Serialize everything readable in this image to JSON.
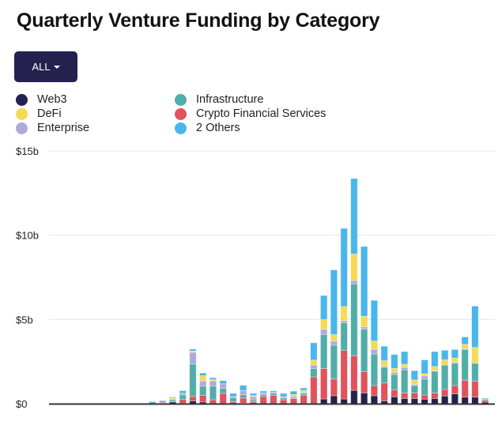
{
  "title": "Quarterly Venture Funding by Category",
  "filter_button": {
    "label": "ALL",
    "icon": "caret-down-icon"
  },
  "chart_data": {
    "type": "bar",
    "stacked": true,
    "title": "Quarterly Venture Funding by Category",
    "xlabel": "",
    "ylabel": "",
    "ylim": [
      0,
      15
    ],
    "y_unit": "billion USD",
    "y_ticks": [
      "$0",
      "$5b",
      "$10b",
      "$15b"
    ],
    "y_tick_values": [
      0,
      5,
      10,
      15
    ],
    "grid": true,
    "legend_position": "top-left",
    "series": [
      {
        "name": "Web3",
        "color": "#24214f",
        "values": [
          0,
          0,
          0,
          0,
          0,
          0,
          0,
          0,
          0,
          0,
          0.1,
          0.02,
          0.16,
          0.1,
          0,
          0,
          0,
          0.03,
          0,
          0,
          0,
          0,
          0,
          0,
          0,
          0.28,
          0.47,
          0.28,
          0.79,
          0.64,
          0.47,
          0.16,
          0.41,
          0.31,
          0.31,
          0.27,
          0.31,
          0.46,
          0.58,
          0.39,
          0.39,
          0.09
        ]
      },
      {
        "name": "Crypto Financial Services",
        "color": "#e0525c",
        "values": [
          0,
          0,
          0,
          0,
          0,
          0,
          0,
          0,
          0,
          0.03,
          0.05,
          0.23,
          0.27,
          0.39,
          0.23,
          0.61,
          0.11,
          0.3,
          0.11,
          0.42,
          0.49,
          0.23,
          0.3,
          0.49,
          1.59,
          1.81,
          0.99,
          2.88,
          2.06,
          1.26,
          0.61,
          1.07,
          0.42,
          0.33,
          0.33,
          0.25,
          0.33,
          0.38,
          0.5,
          1.0,
          0.94,
          0.11
        ]
      },
      {
        "name": "Infrastructure",
        "color": "#52ada8",
        "values": [
          0,
          0,
          0,
          0,
          0,
          0,
          0,
          0,
          0,
          0,
          0.1,
          0.27,
          1.92,
          0.55,
          0.81,
          0.3,
          0.25,
          0.2,
          0.12,
          0.11,
          0.13,
          0.11,
          0,
          0.12,
          0.5,
          2.01,
          2.01,
          1.64,
          4.26,
          2.52,
          1.87,
          0.93,
          0.9,
          1.37,
          0.44,
          0.94,
          1.29,
          1.45,
          1.32,
          1.82,
          1.07,
          0.06
        ]
      },
      {
        "name": "Enterprise",
        "color": "#aeaadb",
        "values": [
          0,
          0,
          0,
          0,
          0,
          0,
          0,
          0,
          0,
          0.16,
          0.03,
          0.1,
          0.7,
          0.31,
          0.31,
          0.27,
          0.06,
          0.25,
          0.19,
          0.12,
          0.06,
          0.08,
          0.12,
          0.06,
          0.2,
          0.31,
          0.24,
          0.13,
          0.2,
          0.14,
          0.27,
          0.06,
          0.13,
          0.14,
          0.06,
          0.19,
          0.03,
          0,
          0.06,
          0.06,
          0,
          0
        ]
      },
      {
        "name": "DeFi",
        "color": "#f6d955",
        "values": [
          0,
          0,
          0,
          0,
          0,
          0,
          0,
          0,
          0,
          0,
          0.07,
          0,
          0.08,
          0.31,
          0.08,
          0,
          0,
          0,
          0.06,
          0,
          0,
          0,
          0.12,
          0.12,
          0.3,
          0.58,
          0.39,
          0.83,
          1.57,
          0.63,
          0.5,
          0.33,
          0.24,
          0.19,
          0.27,
          0.13,
          0.25,
          0.31,
          0.25,
          0.25,
          0.94,
          0
        ]
      },
      {
        "name": "2 Others",
        "color": "#4ab6ec",
        "values": [
          0,
          0,
          0,
          0,
          0,
          0,
          0,
          0,
          0.12,
          0,
          0.05,
          0.15,
          0.11,
          0.16,
          0.11,
          0.19,
          0.19,
          0.31,
          0.13,
          0.1,
          0.08,
          0.19,
          0.2,
          0.14,
          1.02,
          1.43,
          3.84,
          4.64,
          4.48,
          4.14,
          2.41,
          0.86,
          0.82,
          0.75,
          0.55,
          0.82,
          0.88,
          0.57,
          0.5,
          0.44,
          2.45,
          0.06
        ]
      }
    ]
  },
  "legend_order": [
    0,
    2,
    4,
    1,
    3,
    5
  ]
}
